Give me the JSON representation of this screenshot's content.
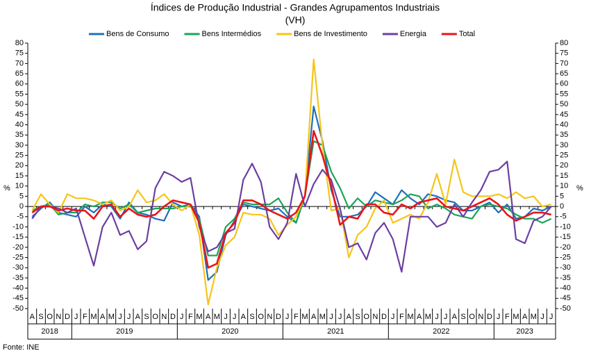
{
  "chart_data": {
    "type": "line",
    "title": "Índices de Produção Industrial - Grandes Agrupamentos Industriais",
    "subtitle": "(VH)",
    "ylabel": "%",
    "source": "Fonte: INE",
    "categories": [
      "A",
      "S",
      "O",
      "N",
      "D",
      "J",
      "F",
      "M",
      "A",
      "M",
      "J",
      "J",
      "A",
      "S",
      "O",
      "N",
      "D",
      "J",
      "F",
      "M",
      "A",
      "M",
      "J",
      "J",
      "A",
      "S",
      "O",
      "N",
      "D",
      "J",
      "F",
      "M",
      "A",
      "M",
      "J",
      "J",
      "A",
      "S",
      "O",
      "N",
      "D",
      "J",
      "F",
      "M",
      "A",
      "M",
      "J",
      "J",
      "A",
      "S",
      "O",
      "N",
      "D",
      "J",
      "F",
      "M",
      "A",
      "M",
      "J",
      "J"
    ],
    "year_labels": [
      "2018",
      "2019",
      "2020",
      "2021",
      "2022",
      "2023"
    ],
    "ylim": [
      -50,
      80
    ],
    "yticks": [
      -50,
      -45,
      -40,
      -35,
      -30,
      -25,
      -20,
      -15,
      -10,
      -5,
      0,
      5,
      10,
      15,
      20,
      25,
      30,
      35,
      40,
      45,
      50,
      55,
      60,
      65,
      70,
      75,
      80
    ],
    "legend": "top",
    "series": [
      {
        "name": "Bens de Consumo",
        "color": "#1f6fba",
        "values": [
          -5,
          -1,
          2,
          -3,
          -4,
          -5,
          0,
          -3,
          1,
          0,
          -6,
          2,
          -3,
          -4,
          -6,
          -7,
          2,
          0,
          1,
          -5,
          -36,
          -32,
          -14,
          -7,
          1,
          0,
          -1,
          -2,
          -1,
          -5,
          -8,
          5,
          49,
          32,
          8,
          -5,
          -5,
          -4,
          0,
          7,
          4,
          1,
          8,
          4,
          1,
          6,
          5,
          3,
          2,
          -2,
          -2,
          0,
          2,
          -3,
          1,
          -6,
          -5,
          -1,
          -2,
          0
        ]
      },
      {
        "name": "Bens Intermédios",
        "color": "#1aa35a",
        "values": [
          -2,
          0,
          1,
          -4,
          -3,
          -3,
          1,
          0,
          2,
          2,
          -1,
          1,
          -3,
          -2,
          -1,
          -1,
          -1,
          0,
          0,
          -6,
          -24,
          -24,
          -10,
          -6,
          2,
          1,
          1,
          1,
          4,
          -3,
          -8,
          5,
          32,
          30,
          17,
          9,
          -1,
          4,
          0,
          3,
          2,
          1,
          3,
          6,
          5,
          -1,
          1,
          -1,
          -4,
          -5,
          -6,
          0,
          1,
          0,
          -1,
          -4,
          -6,
          -6,
          -8,
          -6
        ]
      },
      {
        "name": "Bens de Investimento",
        "color": "#f5c518",
        "values": [
          -2,
          6,
          1,
          -3,
          6,
          4,
          4,
          3,
          1,
          3,
          -2,
          0,
          8,
          2,
          3,
          6,
          1,
          -2,
          1,
          -14,
          -48,
          -30,
          -19,
          -15,
          -3,
          -4,
          -4,
          -6,
          -14,
          -9,
          -5,
          5,
          72,
          30,
          -2,
          -1,
          -25,
          -14,
          -10,
          -1,
          3,
          -8,
          -6,
          -4,
          -6,
          2,
          16,
          1,
          23,
          7,
          5,
          5,
          5,
          6,
          4,
          7,
          4,
          5,
          0,
          1
        ]
      },
      {
        "name": "Energia",
        "color": "#6a3fa0",
        "values": [
          -6,
          0,
          0,
          -1,
          -3,
          -1,
          -15,
          -29,
          -10,
          -3,
          -14,
          -12,
          -21,
          -17,
          9,
          17,
          15,
          12,
          14,
          -10,
          -22,
          -20,
          -13,
          -11,
          13,
          21,
          12,
          -10,
          -16,
          -8,
          16,
          0,
          11,
          18,
          13,
          -1,
          -20,
          -18,
          -26,
          -13,
          -8,
          -16,
          -32,
          -5,
          -5,
          -5,
          -10,
          -8,
          1,
          -5,
          2,
          8,
          17,
          18,
          22,
          -16,
          -18,
          -7,
          -5,
          0
        ]
      },
      {
        "name": "Total",
        "color": "#e8141b",
        "values": [
          -3,
          0,
          0,
          -2,
          -1,
          -2,
          -2,
          -6,
          0,
          1,
          -5,
          -1,
          -4,
          -5,
          -4,
          0,
          3,
          2,
          1,
          -8,
          -30,
          -28,
          -13,
          -8,
          3,
          3,
          1,
          -2,
          -4,
          -6,
          -3,
          5,
          37,
          25,
          10,
          -9,
          -5,
          -6,
          1,
          1,
          -3,
          -4,
          1,
          -1,
          2,
          3,
          4,
          0,
          -1,
          -2,
          0,
          2,
          4,
          1,
          -4,
          -7,
          -5,
          -3,
          -3,
          -4
        ]
      }
    ]
  }
}
